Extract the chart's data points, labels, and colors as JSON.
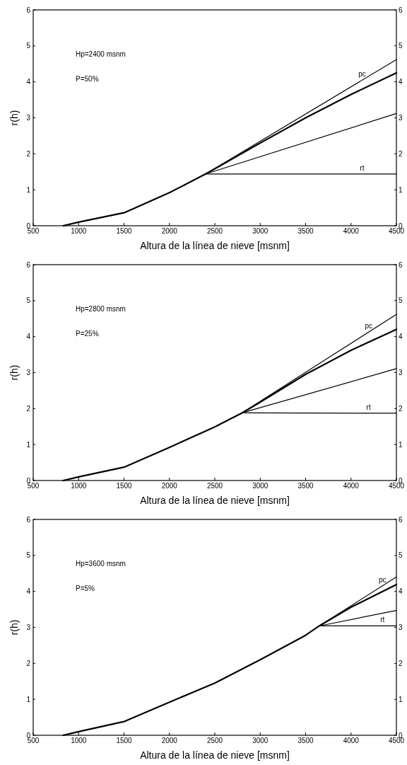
{
  "chart_data": [
    {
      "type": "line",
      "xlabel": "Altura de la línea de nieve [msnm]",
      "ylabel": "r(h)",
      "annotations": [
        "Hp=2400 msnm",
        "P=50%"
      ],
      "xlim": [
        500,
        4500
      ],
      "xticks": [
        500,
        1000,
        1500,
        2000,
        2500,
        3000,
        3500,
        4000,
        4500
      ],
      "ylim": [
        0,
        6
      ],
      "yticks": [
        0,
        1,
        2,
        3,
        4,
        5,
        6
      ],
      "y2lim": [
        0,
        6
      ],
      "y2ticks": [
        0,
        1,
        2,
        3,
        4,
        5,
        6
      ],
      "grid": false,
      "legend": false,
      "marker": "none",
      "line_style": "solid",
      "series": [
        {
          "color": "#000000",
          "x": [
            830,
            1000,
            1500,
            2000,
            2400,
            3000,
            3500,
            4000,
            4500
          ],
          "values": [
            0,
            0.1,
            0.36,
            0.92,
            1.44,
            2.3,
            3.0,
            3.65,
            4.25
          ]
        },
        {
          "name": "pc",
          "color": "#000000",
          "x": [
            2400,
            4500
          ],
          "values": [
            1.44,
            4.62
          ]
        },
        {
          "color": "#000000",
          "x": [
            2400,
            4500
          ],
          "values": [
            1.44,
            3.12
          ]
        },
        {
          "name": "rt",
          "color": "#000000",
          "x": [
            2400,
            4500
          ],
          "values": [
            1.44,
            1.44
          ]
        }
      ]
    },
    {
      "type": "line",
      "xlabel": "Altura de la línea de nieve [msnm]",
      "ylabel": "r(h)",
      "annotations": [
        "Hp=2800 msnm",
        "P=25%"
      ],
      "xlim": [
        500,
        4500
      ],
      "xticks": [
        500,
        1000,
        1500,
        2000,
        2500,
        3000,
        3500,
        4000,
        4500
      ],
      "ylim": [
        0,
        6
      ],
      "yticks": [
        0,
        1,
        2,
        3,
        4,
        5,
        6
      ],
      "y2lim": [
        0,
        6
      ],
      "y2ticks": [
        0,
        1,
        2,
        3,
        4,
        5,
        6
      ],
      "grid": false,
      "legend": false,
      "marker": "none",
      "line_style": "solid",
      "series": [
        {
          "color": "#000000",
          "x": [
            830,
            1000,
            1500,
            2000,
            2500,
            2800,
            3000,
            3500,
            4000,
            4500
          ],
          "values": [
            0,
            0.1,
            0.37,
            0.92,
            1.49,
            1.88,
            2.18,
            2.95,
            3.62,
            4.2
          ]
        },
        {
          "name": "pc",
          "color": "#000000",
          "x": [
            2800,
            4500
          ],
          "values": [
            1.88,
            4.62
          ]
        },
        {
          "color": "#000000",
          "x": [
            2800,
            4500
          ],
          "values": [
            1.88,
            3.11
          ]
        },
        {
          "name": "rt",
          "color": "#000000",
          "x": [
            2800,
            4500
          ],
          "values": [
            1.88,
            1.87
          ]
        }
      ]
    },
    {
      "type": "line",
      "xlabel": "Altura de la línea de nieve [msnm]",
      "ylabel": "r(h)",
      "annotations": [
        "Hp=3600 msnm",
        "P=5%"
      ],
      "xlim": [
        500,
        4500
      ],
      "xticks": [
        500,
        1000,
        1500,
        2000,
        2500,
        3000,
        3500,
        4000,
        4500
      ],
      "ylim": [
        0,
        6
      ],
      "yticks": [
        0,
        1,
        2,
        3,
        4,
        5,
        6
      ],
      "y2lim": [
        0,
        6
      ],
      "y2ticks": [
        0,
        1,
        2,
        3,
        4,
        5,
        6
      ],
      "grid": false,
      "legend": false,
      "marker": "none",
      "line_style": "solid",
      "series": [
        {
          "color": "#000000",
          "x": [
            830,
            1000,
            1500,
            2000,
            2500,
            3000,
            3500,
            3650,
            4000,
            4500
          ],
          "values": [
            0,
            0.1,
            0.38,
            0.92,
            1.45,
            2.1,
            2.78,
            3.04,
            3.56,
            4.19
          ]
        },
        {
          "name": "pc",
          "color": "#000000",
          "x": [
            3650,
            4500
          ],
          "values": [
            3.04,
            4.4
          ]
        },
        {
          "color": "#000000",
          "x": [
            3650,
            4500
          ],
          "values": [
            3.04,
            3.47
          ]
        },
        {
          "name": "rt",
          "color": "#000000",
          "x": [
            3650,
            4500
          ],
          "values": [
            3.04,
            3.04
          ]
        }
      ]
    }
  ]
}
